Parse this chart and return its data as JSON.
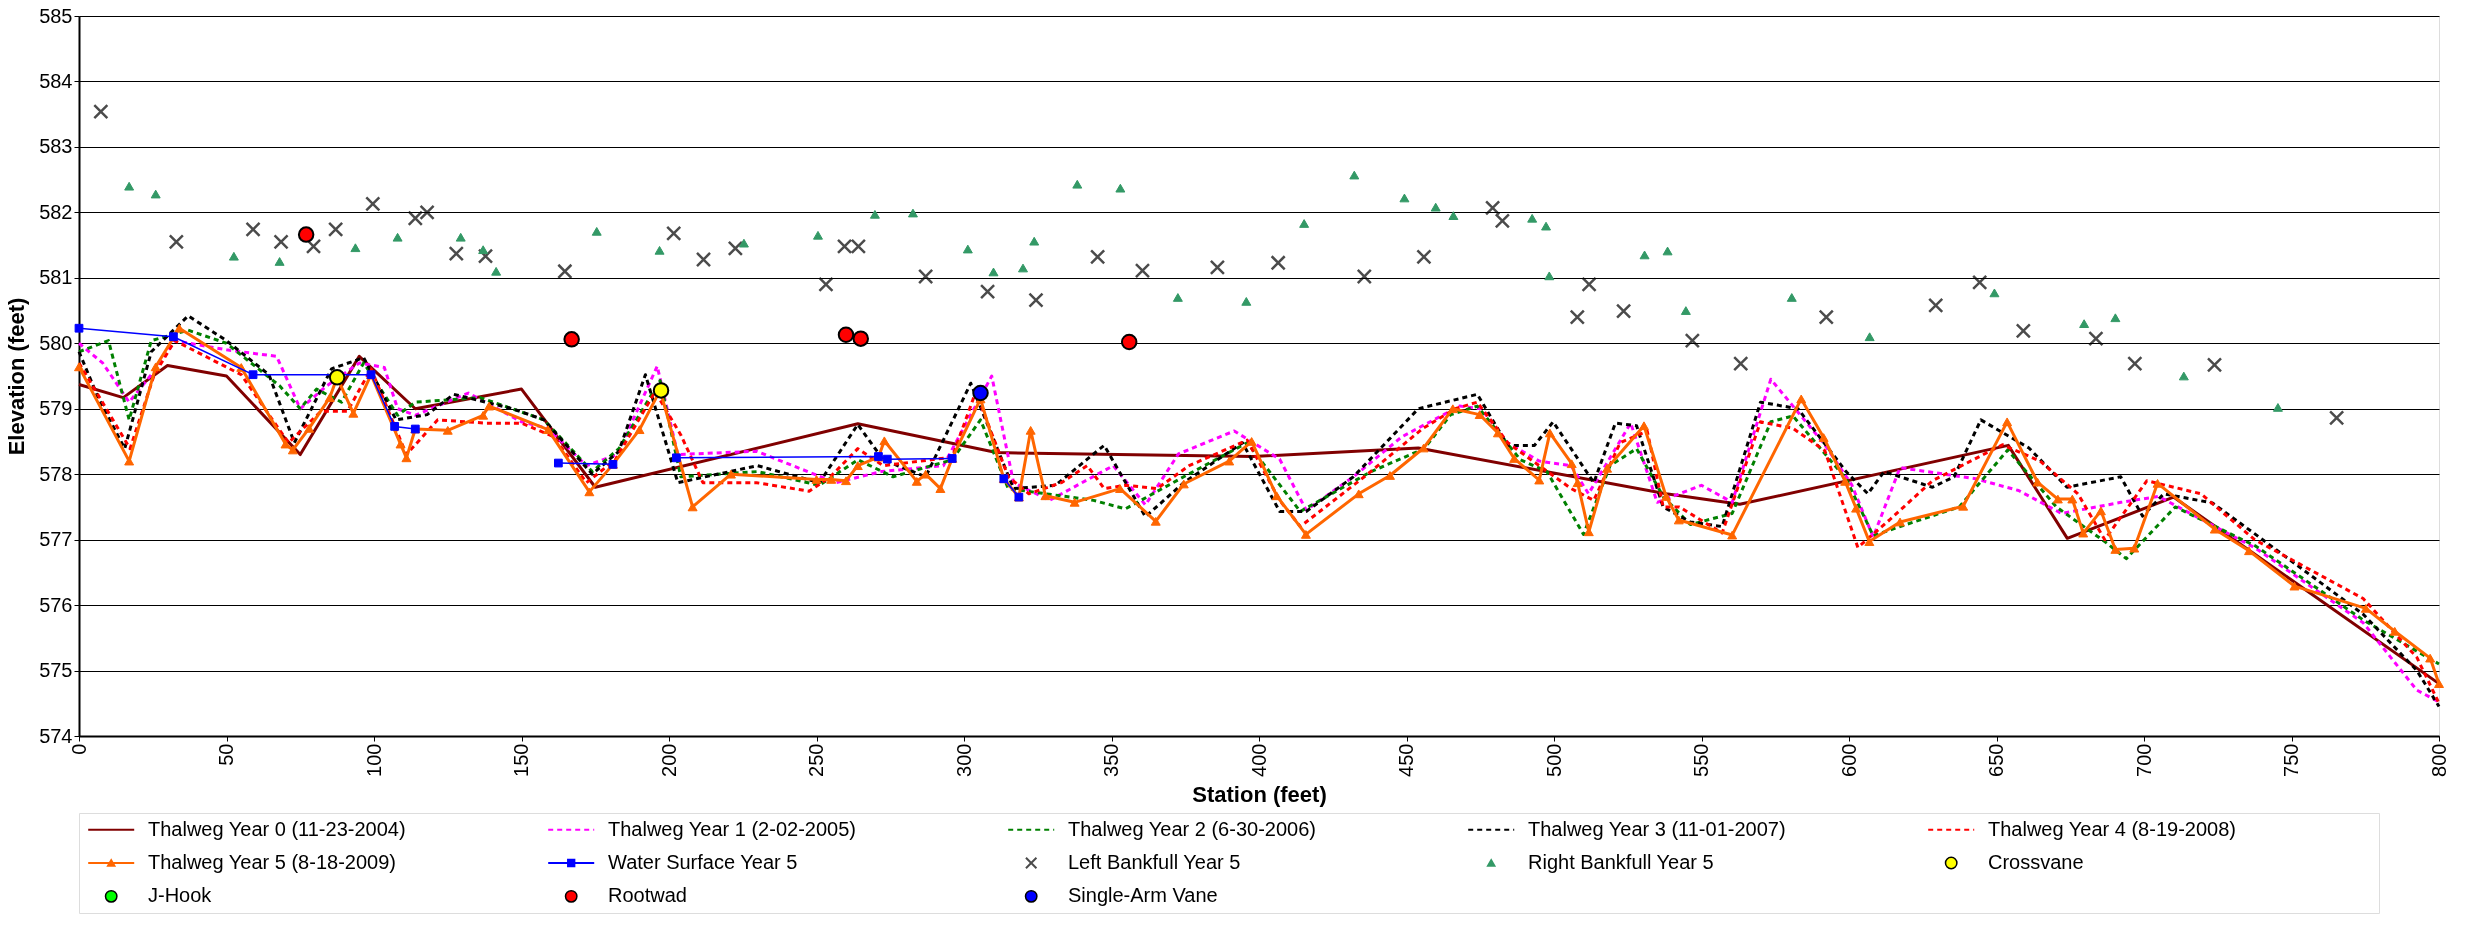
{
  "chart_data": {
    "type": "line",
    "xlabel": "Station (feet)",
    "ylabel": "Elevation (feet)",
    "xlim": [
      0,
      800
    ],
    "xticks": [
      0,
      50,
      100,
      150,
      200,
      250,
      300,
      350,
      400,
      450,
      500,
      550,
      600,
      650,
      700,
      750,
      800
    ],
    "ylim": [
      574,
      585
    ],
    "yticks": [
      574,
      575,
      576,
      577,
      578,
      579,
      580,
      581,
      582,
      583,
      584,
      585
    ],
    "grid": "y",
    "legend": "bottom",
    "series": [
      {
        "name": "Thalweg Year 0 (11-23-2004)",
        "color": "#800000",
        "line_style": "solid",
        "marker": "none",
        "x": [
          0,
          15,
          30,
          50,
          75,
          95,
          114,
          150,
          175,
          264,
          311,
          398,
          454,
          538,
          563,
          654,
          674,
          710,
          800
        ],
        "values": [
          579.37,
          579.17,
          579.66,
          579.5,
          578.3,
          579.8,
          579.0,
          579.3,
          577.8,
          578.77,
          578.33,
          578.27,
          578.4,
          577.7,
          577.54,
          578.44,
          577.02,
          577.65,
          574.8
        ]
      },
      {
        "name": "Thalweg Year 1 (2-02-2005)",
        "color": "#ff00ff",
        "line_style": "dashed",
        "marker": "none",
        "x": [
          0,
          8,
          17,
          24.5,
          32.5,
          50,
          67,
          75,
          84,
          95,
          103.5,
          108,
          114,
          132,
          150,
          159,
          172,
          182.5,
          196,
          203,
          229.7,
          256.5,
          272,
          293,
          309.4,
          316.8,
          329,
          350.6,
          361.5,
          372.7,
          391.6,
          407,
          416,
          432,
          448.4,
          468,
          475.3,
          484.3,
          495,
          505.8,
          511.7,
          526,
          535,
          550,
          560.4,
          573.5,
          591.8,
          600.9,
          608.2,
          617.3,
          642.9,
          657.5,
          672.1,
          692.2,
          704.9,
          737.8,
          774.3,
          792.5,
          800
        ],
        "values": [
          580.0,
          579.7,
          579.1,
          579.52,
          580.04,
          579.9,
          579.8,
          579.0,
          579.35,
          579.7,
          579.63,
          579.0,
          578.9,
          579.24,
          578.8,
          578.7,
          578.13,
          578.3,
          579.65,
          578.3,
          578.35,
          577.87,
          578.04,
          578.13,
          579.5,
          577.87,
          577.6,
          578.13,
          577.53,
          578.31,
          578.66,
          578.23,
          577.45,
          577.96,
          578.57,
          579.04,
          579.0,
          578.48,
          578.2,
          578.13,
          577.7,
          578.78,
          577.57,
          577.83,
          577.57,
          579.45,
          578.45,
          577.84,
          577.04,
          578.1,
          577.93,
          577.75,
          577.4,
          577.57,
          577.66,
          576.87,
          575.73,
          574.7,
          574.52
        ]
      },
      {
        "name": "Thalweg Year 2 (6-30-2006)",
        "color": "#008000",
        "line_style": "dashed",
        "marker": "none",
        "x": [
          0,
          10,
          17,
          24.5,
          37,
          50,
          68,
          75,
          80.5,
          89,
          96.5,
          108,
          114,
          136,
          157.6,
          174,
          183,
          197,
          204,
          230,
          251,
          264,
          276,
          296,
          305.6,
          315,
          343.9,
          354.7,
          374.5,
          396,
          414,
          438,
          456,
          465,
          474,
          488.6,
          497.6,
          510,
          519,
          528,
          537,
          546.2,
          560.4,
          573.5,
          581,
          599,
          608.2,
          617.3,
          637.4,
          653.8,
          670.3,
          686.7,
          694,
          710.6,
          737.9,
          774.4,
          800
        ],
        "values": [
          579.87,
          580.04,
          578.83,
          580.04,
          580.2,
          580.0,
          579.35,
          579.0,
          579.3,
          579.1,
          579.7,
          578.9,
          579.1,
          579.17,
          578.83,
          578.04,
          578.39,
          579.43,
          577.96,
          578.04,
          577.83,
          578.22,
          577.96,
          578.22,
          578.83,
          577.78,
          577.6,
          577.47,
          577.96,
          578.48,
          577.43,
          578.04,
          578.39,
          578.91,
          579.04,
          578.22,
          578.04,
          577.08,
          578.13,
          578.39,
          577.66,
          577.23,
          577.4,
          578.8,
          578.89,
          577.93,
          577.06,
          577.2,
          577.5,
          578.37,
          577.5,
          576.97,
          576.71,
          577.5,
          576.9,
          575.77,
          575.1
        ]
      },
      {
        "name": "Thalweg Year 3 (11-01-2007)",
        "color": "#000000",
        "line_style": "dashed",
        "marker": "none",
        "x": [
          0,
          6.5,
          15.5,
          24.5,
          37,
          50,
          64.4,
          73,
          85.6,
          96.5,
          107.5,
          118,
          127,
          147,
          157.6,
          174,
          183,
          192,
          203,
          230,
          251,
          264,
          272.6,
          287,
          302.3,
          316.8,
          331,
          347.5,
          361.5,
          374.5,
          394.4,
          407,
          416,
          432,
          454,
          474,
          484.3,
          493.4,
          499.7,
          513.5,
          520.8,
          528,
          537,
          546.2,
          557,
          570,
          582.7,
          599,
          606.4,
          611.9,
          628.3,
          635.6,
          644.7,
          661,
          673.9,
          692.1,
          699.5,
          706.7,
          723.2,
          737.8,
          774.3,
          792.5,
          800
        ],
        "values": [
          579.87,
          579.17,
          578.39,
          579.87,
          580.42,
          580.04,
          579.52,
          578.48,
          579.61,
          579.78,
          578.83,
          578.91,
          579.22,
          579.0,
          578.83,
          578.0,
          578.35,
          579.52,
          577.87,
          578.13,
          577.87,
          578.76,
          578.22,
          577.96,
          579.39,
          577.78,
          577.83,
          578.44,
          577.35,
          577.87,
          578.48,
          577.43,
          577.43,
          577.96,
          579.0,
          579.22,
          578.44,
          578.44,
          578.8,
          577.87,
          578.78,
          578.74,
          577.5,
          577.27,
          577.2,
          579.1,
          579.0,
          578.04,
          577.7,
          578.04,
          577.8,
          577.96,
          578.83,
          578.4,
          577.8,
          577.96,
          577.36,
          577.7,
          577.56,
          577.08,
          575.86,
          575.0,
          574.45
        ]
      },
      {
        "name": "Thalweg Year 4 (8-19-2008)",
        "color": "#ff0000",
        "line_style": "dashed",
        "marker": "none",
        "x": [
          0,
          17.3,
          25.5,
          32.5,
          55,
          71,
          82,
          91,
          99,
          111,
          121.6,
          137.8,
          150,
          161,
          172,
          181.8,
          195.3,
          204,
          211.5,
          229.7,
          247.5,
          254.7,
          264,
          272.6,
          296,
          304,
          315,
          322,
          333,
          341.8,
          347.5,
          354.7,
          365.5,
          376.3,
          396,
          407,
          414,
          435.7,
          455.6,
          466.5,
          474,
          484.3,
          495,
          505.8,
          513.5,
          522.4,
          531.6,
          537,
          542.5,
          557,
          570,
          581,
          591.8,
          603,
          613.7,
          628.3,
          652,
          664.8,
          677.6,
          686.7,
          701,
          719.3,
          737.5,
          774.3,
          792.5,
          800
        ],
        "values": [
          579.7,
          578.39,
          579.52,
          580.04,
          579.52,
          578.48,
          578.96,
          578.96,
          579.61,
          578.3,
          578.83,
          578.78,
          578.78,
          578.57,
          577.87,
          578.22,
          579.26,
          578.6,
          577.87,
          577.87,
          577.74,
          577.96,
          578.39,
          578.13,
          578.26,
          579.26,
          577.96,
          577.7,
          577.87,
          578.13,
          577.78,
          577.83,
          577.78,
          578.13,
          578.52,
          577.6,
          577.2,
          577.96,
          578.7,
          579.0,
          579.1,
          578.48,
          578.13,
          577.78,
          577.6,
          578.48,
          578.66,
          577.5,
          577.5,
          577.1,
          578.8,
          578.7,
          578.36,
          576.88,
          577.3,
          577.9,
          578.45,
          578.2,
          577.7,
          577.0,
          577.9,
          577.7,
          577.0,
          576.1,
          575.2,
          574.5
        ]
      },
      {
        "name": "Thalweg Year 5 (8-18-2009)",
        "color": "#ff6600",
        "line_style": "solid",
        "marker": "triangle",
        "x": [
          0,
          17,
          26,
          34,
          55,
          70,
          72.5,
          78,
          85,
          87.5,
          93,
          99,
          109,
          111,
          114,
          125,
          137,
          139,
          159,
          173,
          181,
          190,
          197,
          208,
          221,
          250,
          255,
          260,
          264,
          271,
          273,
          284,
          287,
          292,
          296,
          305.6,
          313.5,
          318.6,
          322.6,
          327.6,
          337.5,
          352.9,
          365,
          374.5,
          389.9,
          397.5,
          406,
          415.9,
          433.8,
          444.4,
          455.8,
          465.7,
          474.8,
          481,
          486.5,
          495,
          498.6,
          506,
          508,
          511.8,
          518,
          530.5,
          538,
          542.3,
          560.4,
          583.8,
          591.4,
          598.7,
          602.4,
          606.9,
          617.3,
          638.7,
          653.6,
          663.9,
          670.8,
          675.7,
          679.4,
          685.4,
          690.3,
          696.7,
          704.6,
          724,
          735.6,
          751,
          775.2,
          785,
          797,
          800
        ],
        "values": [
          579.64,
          578.2,
          579.64,
          580.23,
          579.63,
          578.46,
          578.37,
          578.7,
          579.17,
          579.48,
          578.93,
          579.52,
          578.46,
          578.25,
          578.69,
          578.67,
          578.9,
          579.04,
          578.68,
          577.73,
          578.15,
          578.68,
          579.28,
          577.5,
          578.0,
          577.92,
          577.92,
          577.9,
          578.13,
          578.26,
          578.51,
          577.89,
          578.0,
          577.78,
          578.24,
          579.15,
          577.93,
          577.65,
          578.67,
          577.67,
          577.57,
          577.78,
          577.28,
          577.85,
          578.2,
          578.5,
          577.67,
          577.08,
          577.7,
          577.98,
          578.4,
          579.0,
          578.91,
          578.63,
          578.24,
          577.91,
          578.63,
          578.16,
          577.87,
          577.12,
          578.09,
          578.74,
          577.66,
          577.3,
          577.07,
          579.15,
          578.56,
          577.89,
          577.48,
          576.97,
          577.27,
          577.51,
          578.8,
          577.88,
          577.62,
          577.62,
          577.1,
          577.44,
          576.85,
          576.87,
          577.86,
          577.16,
          576.83,
          576.29,
          575.95,
          575.6,
          575.19,
          574.8
        ]
      },
      {
        "name": "Water Surface Year 5",
        "color": "#0000ff",
        "line_style": "solid",
        "marker": "square",
        "x": [
          0,
          32,
          59,
          99,
          107,
          114,
          140,
          162.5,
          181,
          190,
          202.5,
          271,
          274,
          296,
          305,
          313.5,
          318.6
        ],
        "values": [
          580.23,
          580.1,
          579.52,
          579.52,
          578.73,
          578.69,
          null,
          578.17,
          578.15,
          null,
          578.25,
          578.27,
          578.23,
          578.24,
          null,
          577.93,
          577.65
        ]
      },
      {
        "name": "Left Bankfull Year 5",
        "type": "scatter",
        "color": "#000000",
        "marker": "cross",
        "x": [
          7.4,
          33,
          59,
          68.5,
          79.5,
          87,
          99.6,
          114,
          118,
          127.9,
          137.8,
          164.7,
          201.6,
          211.7,
          222.5,
          253.2,
          259.5,
          264.2,
          287,
          308,
          324.4,
          345.3,
          360.5,
          385.9,
          406.5,
          435.7,
          455.9,
          479.2,
          482.5,
          507.9,
          511.9,
          523.6,
          546.9,
          563.3,
          592.3,
          629.4,
          644.3,
          659.1,
          683.7,
          696.9,
          723.9,
          765.3
        ],
        "values": [
          583.54,
          581.55,
          581.74,
          581.55,
          581.48,
          581.74,
          582.13,
          581.91,
          582.0,
          581.37,
          581.33,
          581.1,
          581.68,
          581.28,
          581.45,
          580.9,
          581.48,
          581.48,
          581.02,
          580.79,
          580.66,
          581.32,
          581.11,
          581.16,
          581.23,
          581.02,
          581.32,
          582.07,
          581.87,
          580.4,
          580.9,
          580.49,
          580.04,
          579.69,
          580.4,
          580.58,
          580.93,
          580.19,
          580.07,
          579.69,
          579.67,
          578.86
        ]
      },
      {
        "name": "Right Bankfull Year 5",
        "type": "scatter",
        "color": "#339966",
        "marker": "triangle",
        "x": [
          17,
          26,
          52.5,
          68,
          93.7,
          108,
          129.4,
          137,
          141.4,
          175.5,
          196.8,
          225.4,
          250.5,
          269.8,
          282.7,
          301.3,
          310,
          320,
          323.8,
          338.4,
          353,
          372.5,
          395.7,
          415.3,
          432.3,
          449.3,
          459.9,
          465.9,
          492.6,
          497.3,
          498.4,
          530.7,
          538.5,
          544.7,
          580.6,
          607,
          649.3,
          679.7,
          690.3,
          713.5,
          745.4
        ],
        "values": [
          582.4,
          582.28,
          581.33,
          581.25,
          581.46,
          581.62,
          581.62,
          581.43,
          581.1,
          581.71,
          581.42,
          581.53,
          581.65,
          581.97,
          581.99,
          581.44,
          581.09,
          581.15,
          581.56,
          582.43,
          582.37,
          580.7,
          580.64,
          581.83,
          582.57,
          582.22,
          582.08,
          581.95,
          581.91,
          581.79,
          581.03,
          581.35,
          581.41,
          580.5,
          580.7,
          580.1,
          580.77,
          580.3,
          580.39,
          579.5,
          579.02
        ]
      },
      {
        "name": "Crossvane",
        "type": "scatter",
        "color": "#ffff00",
        "marker": "circle",
        "x": [
          87.5,
          197.3
        ],
        "values": [
          579.48,
          579.28
        ]
      },
      {
        "name": "J-Hook",
        "type": "scatter",
        "color": "#00ff00",
        "marker": "circle"
      },
      {
        "name": "Rootwad",
        "type": "scatter",
        "color": "#ff0000",
        "marker": "circle",
        "x": [
          77,
          167,
          260,
          265,
          356
        ],
        "values": [
          581.66,
          580.06,
          580.13,
          580.07,
          580.02
        ]
      },
      {
        "name": "Single-Arm Vane",
        "type": "scatter",
        "color": "#0000ff",
        "marker": "circle",
        "x": [
          305.6
        ],
        "values": [
          579.24
        ]
      }
    ]
  }
}
